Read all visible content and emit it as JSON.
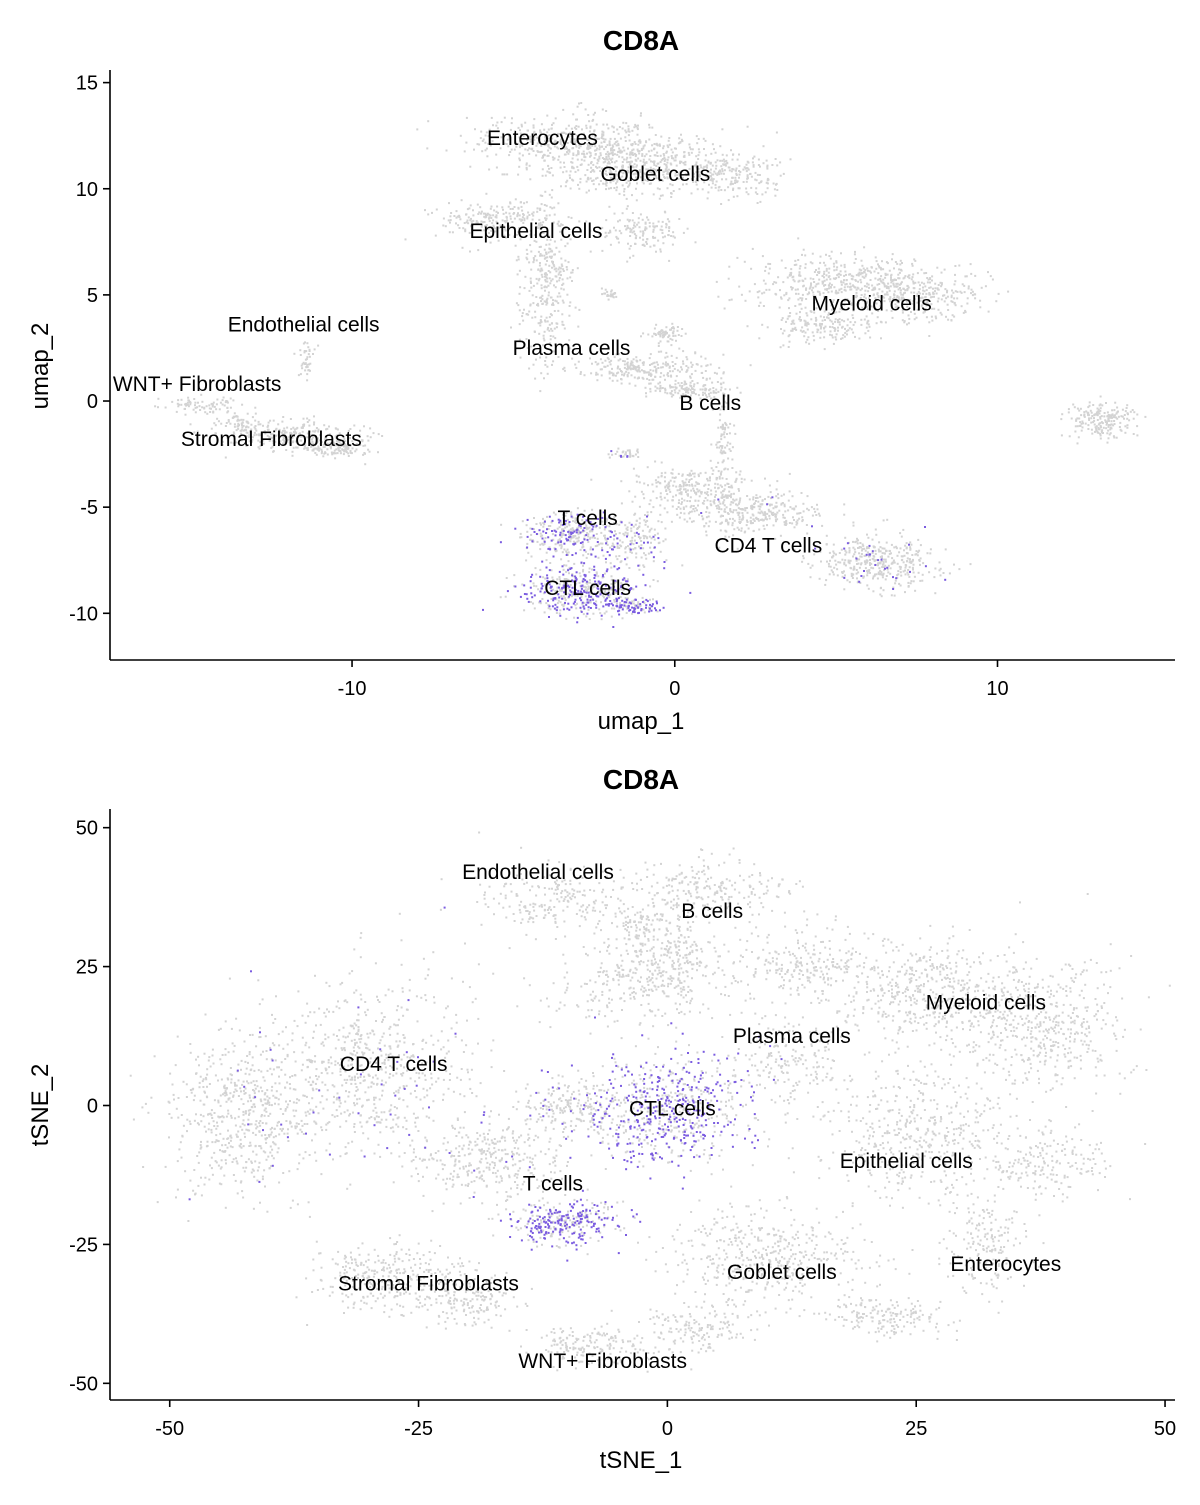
{
  "colors": {
    "low": "#d3d3d3",
    "high": "#7b5ce0",
    "axis": "#000000",
    "background": "#ffffff"
  },
  "chart_data": [
    {
      "type": "scatter",
      "title": "CD8A",
      "xlabel": "umap_1",
      "ylabel": "umap_2",
      "xlim": [
        -17.5,
        15.5
      ],
      "ylim": [
        -12.2,
        15.5
      ],
      "xticks": [
        -10,
        0,
        10
      ],
      "yticks": [
        -10,
        -5,
        0,
        5,
        10,
        15
      ],
      "xtick_labels": [
        "-10",
        "0",
        "10"
      ],
      "ytick_labels": [
        "-10",
        "-5",
        "0",
        "5",
        "10",
        "15"
      ],
      "grid": false,
      "legend": "none",
      "color_by": "CD8A expression",
      "clusters": [
        {
          "label": "Enterocytes",
          "x": -4.1,
          "y": 12.4,
          "blobs": [
            [
              -3.5,
              12.3,
              2.4,
              1.0,
              320,
              0
            ],
            [
              -1.5,
              11.5,
              2.5,
              1.2,
              380,
              0
            ],
            [
              1.6,
              10.7,
              1.6,
              0.9,
              220,
              0
            ]
          ]
        },
        {
          "label": "Goblet cells",
          "x": -0.6,
          "y": 10.7,
          "blobs": [
            [
              -1.5,
              10.8,
              1.8,
              0.9,
              180,
              0
            ]
          ]
        },
        {
          "label": "Epithelial cells",
          "x": -4.3,
          "y": 8.0,
          "blobs": [
            [
              -5.5,
              8.5,
              1.6,
              0.8,
              220,
              0
            ],
            [
              -4.0,
              5.5,
              0.7,
              3.0,
              320,
              0
            ],
            [
              -1.0,
              8.0,
              1.2,
              0.9,
              140,
              0
            ],
            [
              -2.0,
              5.0,
              0.25,
              0.25,
              25,
              0
            ]
          ]
        },
        {
          "label": "Endothelial cells",
          "x": -11.5,
          "y": 3.6,
          "blobs": [
            [
              -11.4,
              2.0,
              0.2,
              0.8,
              40,
              0
            ]
          ]
        },
        {
          "label": "Plasma cells",
          "x": -3.2,
          "y": 2.5,
          "blobs": [
            [
              -1.0,
              1.5,
              2.0,
              0.6,
              260,
              0
            ],
            [
              0.5,
              0.5,
              1.0,
              0.4,
              120,
              0
            ],
            [
              -0.3,
              3.2,
              0.4,
              0.3,
              60,
              0
            ]
          ]
        },
        {
          "label": "Myeloid cells",
          "x": 6.1,
          "y": 4.6,
          "blobs": [
            [
              5.0,
              5.5,
              2.2,
              1.2,
              420,
              0
            ],
            [
              7.5,
              5.0,
              1.8,
              1.1,
              320,
              0
            ],
            [
              4.5,
              3.5,
              1.2,
              0.6,
              150,
              0
            ]
          ]
        },
        {
          "label": "B cells",
          "x": 1.1,
          "y": -0.1,
          "blobs": [
            [
              13.2,
              -0.9,
              0.9,
              0.7,
              200,
              0
            ],
            [
              1.5,
              -2.0,
              0.25,
              1.8,
              80,
              0
            ]
          ]
        },
        {
          "label": "WNT+ Fibroblasts",
          "x": -14.8,
          "y": 0.8,
          "blobs": [
            [
              -14.5,
              -0.2,
              0.9,
              0.4,
              80,
              0
            ],
            [
              -12.0,
              -1.6,
              1.8,
              0.6,
              250,
              0
            ],
            [
              -13.5,
              -1.0,
              0.6,
              0.4,
              60,
              0
            ]
          ]
        },
        {
          "label": "Stromal Fibroblasts",
          "x": -12.5,
          "y": -1.8,
          "blobs": [
            [
              -10.5,
              -2.2,
              1.0,
              0.4,
              120,
              0
            ]
          ]
        },
        {
          "label": "T cells",
          "x": -2.7,
          "y": -5.5,
          "blobs": [
            [
              -3.2,
              -6.3,
              1.2,
              0.9,
              330,
              0.32
            ],
            [
              -1.5,
              -2.5,
              0.4,
              0.2,
              35,
              0.2
            ]
          ]
        },
        {
          "label": "CD4 T cells",
          "x": 2.9,
          "y": -6.8,
          "blobs": [
            [
              0.5,
              -4.2,
              1.5,
              0.9,
              260,
              0
            ],
            [
              2.5,
              -5.3,
              1.8,
              0.9,
              320,
              0.01
            ],
            [
              6.3,
              -7.6,
              1.5,
              1.0,
              400,
              0.06
            ],
            [
              -1.3,
              -6.5,
              0.9,
              1.0,
              150,
              0.12
            ]
          ]
        },
        {
          "label": "CTL cells",
          "x": -2.7,
          "y": -8.8,
          "blobs": [
            [
              -2.8,
              -8.9,
              1.6,
              1.0,
              480,
              0.42
            ],
            [
              -1.3,
              -9.7,
              0.6,
              0.3,
              80,
              0.65
            ]
          ]
        }
      ]
    },
    {
      "type": "scatter",
      "title": "CD8A",
      "xlabel": "tSNE_1",
      "ylabel": "tSNE_2",
      "xlim": [
        -56,
        51
      ],
      "ylim": [
        -53,
        53
      ],
      "xticks": [
        -50,
        -25,
        0,
        25,
        50
      ],
      "yticks": [
        -50,
        -25,
        0,
        25,
        50
      ],
      "xtick_labels": [
        "-50",
        "-25",
        "0",
        "25",
        "50"
      ],
      "ytick_labels": [
        "-50",
        "-25",
        "0",
        "25",
        "50"
      ],
      "grid": false,
      "legend": "none",
      "color_by": "CD8A expression",
      "clusters": [
        {
          "label": "Endothelial cells",
          "x": -13,
          "y": 42,
          "blobs": [
            [
              -12,
              37,
              6,
              5,
              200,
              0
            ],
            [
              -3,
              33,
              3,
              3,
              80,
              0
            ]
          ]
        },
        {
          "label": "B cells",
          "x": 4.5,
          "y": 35,
          "blobs": [
            [
              4,
              39,
              7,
              5,
              240,
              0
            ],
            [
              0,
              27,
              5,
              6,
              200,
              0
            ]
          ]
        },
        {
          "label": "Myeloid cells",
          "x": 32,
          "y": 18.5,
          "blobs": [
            [
              26,
              20,
              9,
              8,
              500,
              0
            ],
            [
              38,
              14,
              7,
              10,
              450,
              0
            ],
            [
              14,
              25,
              6,
              6,
              220,
              0
            ],
            [
              12,
              8,
              5,
              7,
              180,
              0.01
            ]
          ]
        },
        {
          "label": "Plasma cells",
          "x": 12.5,
          "y": 12.5,
          "blobs": [
            [
              -3,
              22,
              8,
              6,
              260,
              0.01
            ]
          ]
        },
        {
          "label": "CD4 T cells",
          "x": -27.5,
          "y": 7.5,
          "blobs": [
            [
              -43,
              -2,
              6,
              12,
              550,
              0.02
            ],
            [
              -30,
              6,
              9,
              14,
              700,
              0.05
            ]
          ]
        },
        {
          "label": "CTL cells",
          "x": 0.5,
          "y": -0.5,
          "blobs": [
            [
              0,
              -1,
              7,
              9,
              700,
              0.48
            ]
          ]
        },
        {
          "label": "Epithelial cells",
          "x": 24,
          "y": -10,
          "blobs": [
            [
              25,
              -5,
              8,
              10,
              450,
              0
            ],
            [
              38,
              -10,
              5,
              5,
              180,
              0
            ]
          ]
        },
        {
          "label": "T cells",
          "x": -11.5,
          "y": -14,
          "blobs": [
            [
              -10,
              -21,
              4.5,
              3.5,
              330,
              0.58
            ],
            [
              -18,
              -10,
              6,
              6,
              320,
              0.02
            ],
            [
              -10,
              0,
              5,
              4,
              200,
              0.1
            ]
          ]
        },
        {
          "label": "Goblet cells",
          "x": 11.5,
          "y": -30,
          "blobs": [
            [
              10,
              -27,
              8,
              7,
              450,
              0
            ],
            [
              3,
              -40,
              5,
              4,
              150,
              0
            ]
          ]
        },
        {
          "label": "Enterocytes",
          "x": 34,
          "y": -28.5,
          "blobs": [
            [
              32,
              -25,
              3.5,
              8,
              180,
              0
            ],
            [
              22,
              -38,
              5,
              3,
              160,
              0
            ]
          ]
        },
        {
          "label": "Stromal Fibroblasts",
          "x": -24,
          "y": -32,
          "blobs": [
            [
              -28,
              -31,
              6,
              5,
              320,
              0
            ],
            [
              -20,
              -35,
              4,
              4,
              150,
              0
            ]
          ]
        },
        {
          "label": "WNT+ Fibroblasts",
          "x": -6.5,
          "y": -46,
          "blobs": [
            [
              -8,
              -43,
              5,
              3,
              170,
              0
            ]
          ]
        }
      ]
    }
  ]
}
